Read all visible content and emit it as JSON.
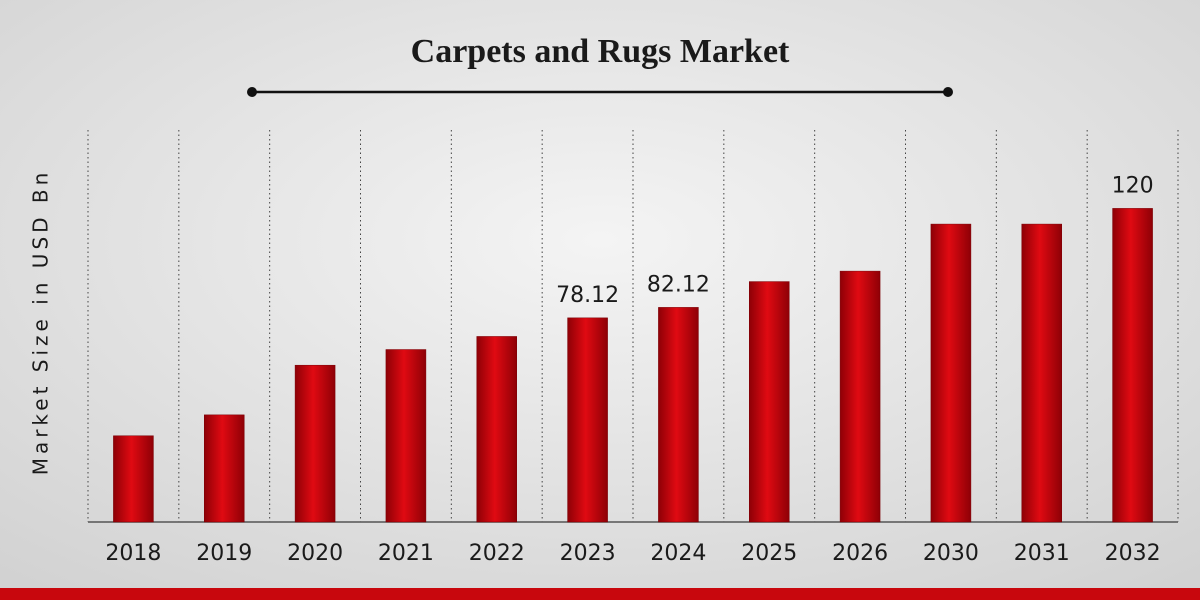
{
  "chart_data": {
    "type": "bar",
    "title": "Carpets and Rugs Market",
    "y_label": "Market Size in USD Bn",
    "categories": [
      "2018",
      "2019",
      "2020",
      "2021",
      "2022",
      "2023",
      "2024",
      "2025",
      "2026",
      "2030",
      "2031",
      "2032"
    ],
    "values": [
      33,
      41,
      60,
      66,
      71,
      78.12,
      82.12,
      92,
      96,
      114,
      114,
      120
    ],
    "value_labels": [
      null,
      null,
      null,
      null,
      null,
      "78.12",
      "82.12",
      null,
      null,
      null,
      null,
      "120"
    ],
    "color": "#c8070d",
    "ylim": [
      0,
      150
    ]
  }
}
